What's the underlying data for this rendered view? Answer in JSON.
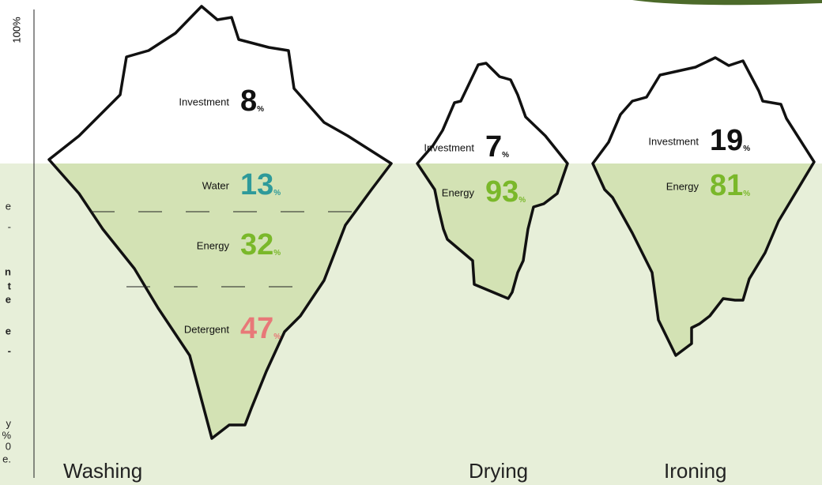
{
  "axis_label": "100%",
  "unit": "%",
  "left_text_fragments": [
    {
      "text": "e",
      "bold": false
    },
    {
      "text": "-",
      "bold": false
    },
    {
      "text": "n",
      "bold": true
    },
    {
      "text": "t",
      "bold": true
    },
    {
      "text": "e",
      "bold": true
    },
    {
      "text": "e",
      "bold": true
    },
    {
      "text": "-",
      "bold": true
    },
    {
      "text": "y",
      "bold": false
    },
    {
      "text": "%",
      "bold": false
    },
    {
      "text": "0",
      "bold": false
    },
    {
      "text": "e.",
      "bold": false
    }
  ],
  "icebergs": [
    {
      "name": "Washing",
      "segments": [
        {
          "label": "Investment",
          "value": 8,
          "color": "#111111"
        },
        {
          "label": "Water",
          "value": 13,
          "color": "#2e9a9a"
        },
        {
          "label": "Energy",
          "value": 32,
          "color": "#7ab82a"
        },
        {
          "label": "Detergent",
          "value": 47,
          "color": "#e87878"
        }
      ]
    },
    {
      "name": "Drying",
      "segments": [
        {
          "label": "Investment",
          "value": 7,
          "color": "#111111"
        },
        {
          "label": "Energy",
          "value": 93,
          "color": "#7ab82a"
        }
      ]
    },
    {
      "name": "Ironing",
      "segments": [
        {
          "label": "Investment",
          "value": 19,
          "color": "#111111"
        },
        {
          "label": "Energy",
          "value": 81,
          "color": "#7ab82a"
        }
      ]
    }
  ]
}
